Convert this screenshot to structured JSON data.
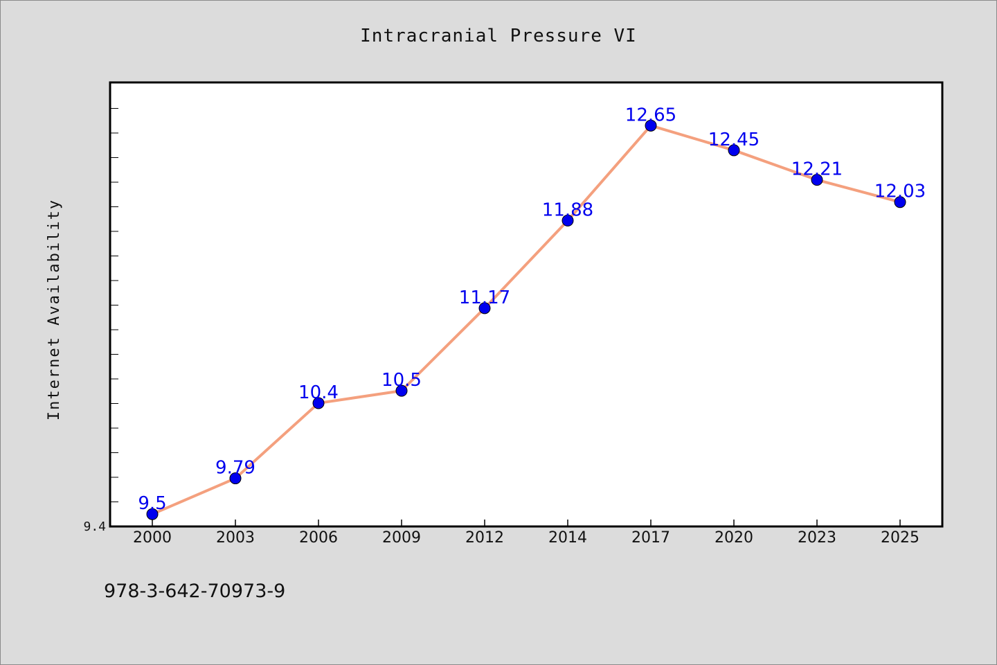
{
  "chart_data": {
    "type": "line",
    "title": "Intracranial Pressure VI",
    "xlabel": "",
    "ylabel": "Internet Availability",
    "categories": [
      "2000",
      "2003",
      "2006",
      "2009",
      "2012",
      "2014",
      "2017",
      "2020",
      "2023",
      "2025"
    ],
    "series": [
      {
        "values": [
          9.5,
          9.79,
          10.4,
          10.5,
          11.17,
          11.88,
          12.65,
          12.45,
          12.21,
          12.03
        ],
        "data_labels": [
          "9.5",
          "9.79",
          "10.4",
          "10.5",
          "11.17",
          "11.88",
          "12.65",
          "12.45",
          "12.21",
          "12.03"
        ]
      }
    ],
    "y_tick_labels": [
      "9.4"
    ],
    "ylim": [
      9.4,
      13.0
    ],
    "grid": false,
    "colors": {
      "line": "#f4a07e",
      "marker": "#0000ee",
      "data_label": "#0000ee"
    }
  },
  "footer_text": "978-3-642-70973-9"
}
